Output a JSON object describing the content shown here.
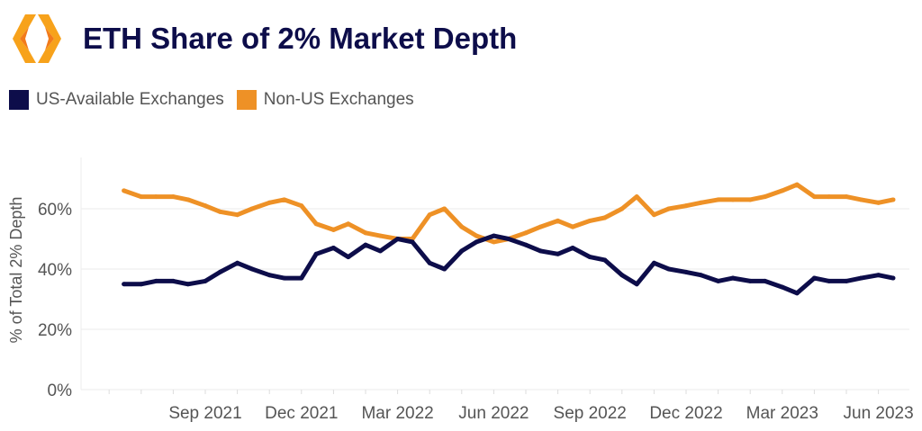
{
  "title": "ETH Share of 2% Market Depth",
  "logo": "orange-hexagon-bracket-logo",
  "chart_data": {
    "type": "line",
    "title": "ETH Share of 2% Market Depth",
    "xlabel": "",
    "ylabel": "% of Total 2% Depth",
    "ylim": [
      0,
      75
    ],
    "yticks": [
      "0%",
      "20%",
      "40%",
      "60%"
    ],
    "ytick_values": [
      0,
      20,
      40,
      60
    ],
    "xticks": [
      "Sep 2021",
      "Dec 2021",
      "Mar 2022",
      "Jun 2022",
      "Sep 2022",
      "Dec 2022",
      "Mar 2023",
      "Jun 2023"
    ],
    "xtick_dates": [
      "2021-09-01",
      "2021-12-01",
      "2022-03-01",
      "2022-06-01",
      "2022-09-01",
      "2022-12-01",
      "2023-03-01",
      "2023-06-01"
    ],
    "grid": true,
    "legend_position": "top-left",
    "x": [
      "2021-06-15",
      "2021-07-01",
      "2021-07-15",
      "2021-08-01",
      "2021-08-15",
      "2021-09-01",
      "2021-09-15",
      "2021-10-01",
      "2021-10-15",
      "2021-11-01",
      "2021-11-15",
      "2021-12-01",
      "2021-12-15",
      "2022-01-01",
      "2022-01-15",
      "2022-02-01",
      "2022-02-15",
      "2022-03-01",
      "2022-03-15",
      "2022-04-01",
      "2022-04-15",
      "2022-05-01",
      "2022-05-15",
      "2022-06-01",
      "2022-06-15",
      "2022-07-01",
      "2022-07-15",
      "2022-08-01",
      "2022-08-15",
      "2022-09-01",
      "2022-09-15",
      "2022-10-01",
      "2022-10-15",
      "2022-11-01",
      "2022-11-15",
      "2022-12-01",
      "2022-12-15",
      "2023-01-01",
      "2023-01-15",
      "2023-02-01",
      "2023-02-15",
      "2023-03-01",
      "2023-03-15",
      "2023-04-01",
      "2023-04-15",
      "2023-05-01",
      "2023-05-15",
      "2023-06-01",
      "2023-06-15"
    ],
    "series": [
      {
        "name": "US-Available Exchanges",
        "color": "#0d0d4a",
        "values": [
          35,
          35,
          36,
          36,
          35,
          36,
          39,
          42,
          40,
          38,
          37,
          37,
          45,
          47,
          44,
          48,
          46,
          50,
          49,
          42,
          40,
          46,
          49,
          51,
          50,
          48,
          46,
          45,
          47,
          44,
          43,
          38,
          35,
          42,
          40,
          39,
          38,
          36,
          37,
          36,
          36,
          34,
          32,
          37,
          36,
          36,
          37,
          38,
          37
        ]
      },
      {
        "name": "Non-US Exchanges",
        "color": "#ee9126",
        "values": [
          66,
          64,
          64,
          64,
          63,
          61,
          59,
          58,
          60,
          62,
          63,
          61,
          55,
          53,
          55,
          52,
          51,
          50,
          50,
          58,
          60,
          54,
          51,
          49,
          50,
          52,
          54,
          56,
          54,
          56,
          57,
          60,
          64,
          58,
          60,
          61,
          62,
          63,
          63,
          63,
          64,
          66,
          68,
          64,
          64,
          64,
          63,
          62,
          63
        ]
      }
    ]
  }
}
